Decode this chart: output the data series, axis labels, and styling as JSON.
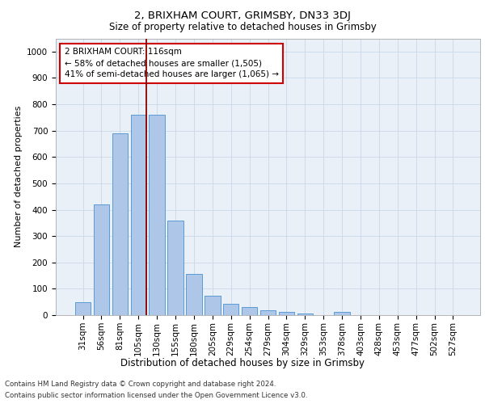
{
  "title_line1": "2, BRIXHAM COURT, GRIMSBY, DN33 3DJ",
  "title_line2": "Size of property relative to detached houses in Grimsby",
  "xlabel": "Distribution of detached houses by size in Grimsby",
  "ylabel": "Number of detached properties",
  "categories": [
    "31sqm",
    "56sqm",
    "81sqm",
    "105sqm",
    "130sqm",
    "155sqm",
    "180sqm",
    "205sqm",
    "229sqm",
    "254sqm",
    "279sqm",
    "304sqm",
    "329sqm",
    "353sqm",
    "378sqm",
    "403sqm",
    "428sqm",
    "453sqm",
    "477sqm",
    "502sqm",
    "527sqm"
  ],
  "values": [
    50,
    420,
    690,
    760,
    760,
    360,
    155,
    75,
    42,
    30,
    18,
    12,
    5,
    0,
    12,
    0,
    0,
    0,
    0,
    0,
    0
  ],
  "bar_color": "#aec6e8",
  "bar_edge_color": "#5b9bd5",
  "grid_color": "#c8d8e8",
  "background_color": "#eaf0f8",
  "annotation_box_text": "2 BRIXHAM COURT: 116sqm\n← 58% of detached houses are smaller (1,505)\n41% of semi-detached houses are larger (1,065) →",
  "redline_x": 3.44,
  "ylim": [
    0,
    1050
  ],
  "yticks": [
    0,
    100,
    200,
    300,
    400,
    500,
    600,
    700,
    800,
    900,
    1000
  ],
  "footer_line1": "Contains HM Land Registry data © Crown copyright and database right 2024.",
  "footer_line2": "Contains public sector information licensed under the Open Government Licence v3.0.",
  "title1_fontsize": 9.5,
  "title2_fontsize": 8.5,
  "ylabel_fontsize": 8,
  "xlabel_fontsize": 8.5,
  "tick_fontsize": 7.5,
  "footer_fontsize": 6.2
}
